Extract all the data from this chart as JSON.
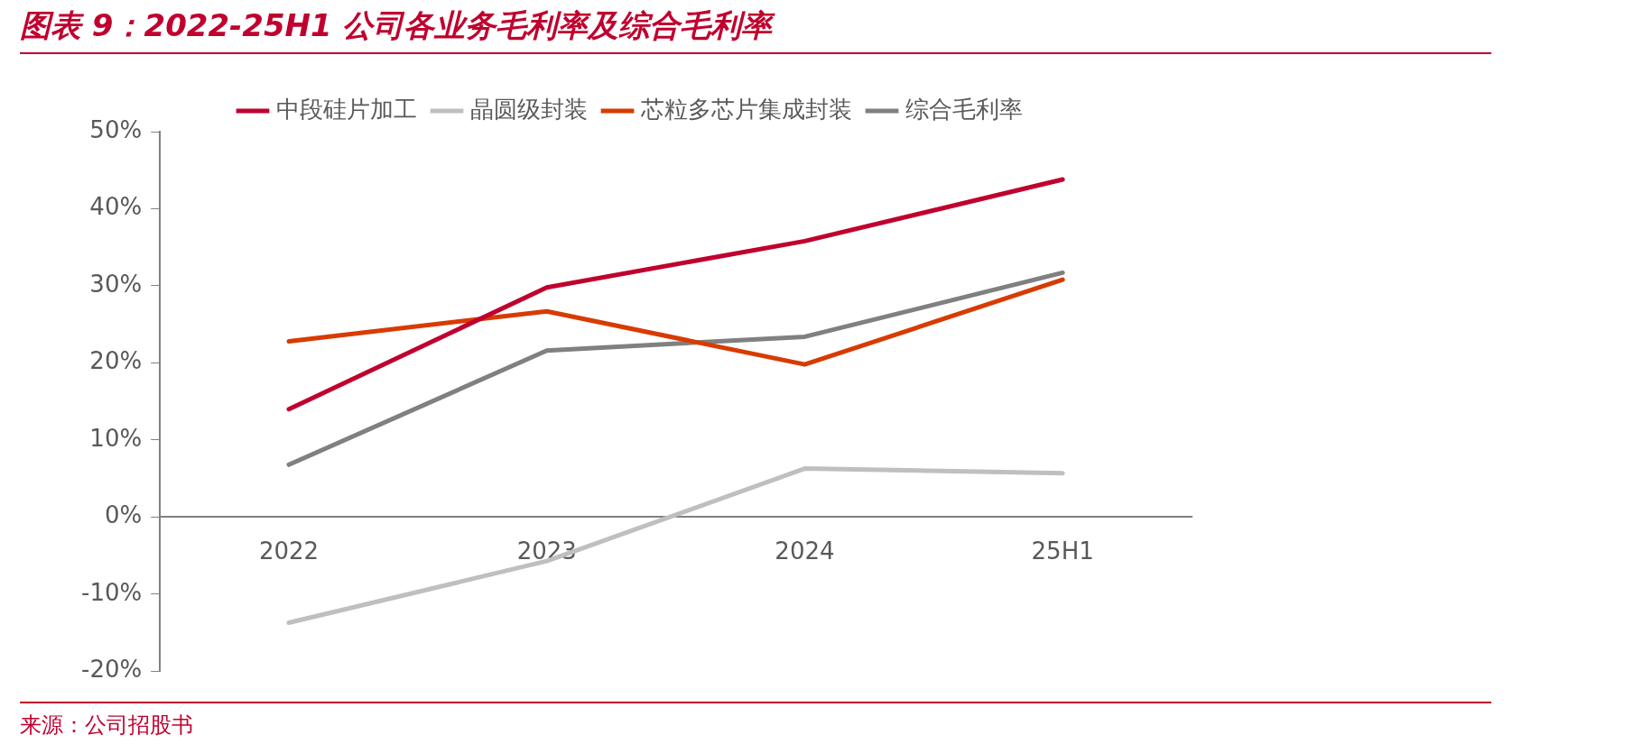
{
  "chart_data": {
    "type": "line",
    "title": "图表 9：2022-25H1 公司各业务毛利率及综合毛利率",
    "categories": [
      "2022",
      "2023",
      "2024",
      "25H1"
    ],
    "series": [
      {
        "name": "中段硅片加工",
        "color": "#c0002e",
        "values": [
          14.0,
          29.8,
          35.8,
          43.8
        ]
      },
      {
        "name": "晶圆级封装",
        "color": "#bfbfbf",
        "values": [
          -13.7,
          -5.7,
          6.3,
          5.7
        ]
      },
      {
        "name": "芯粒多芯片集成封装",
        "color": "#d83b01",
        "values": [
          22.8,
          26.7,
          19.8,
          30.8
        ]
      },
      {
        "name": "综合毛利率",
        "color": "#808080",
        "values": [
          6.8,
          21.6,
          23.4,
          31.7
        ]
      }
    ],
    "ylim": [
      -20,
      50
    ],
    "yticks": [
      {
        "value": -20,
        "label": "-20%"
      },
      {
        "value": -10,
        "label": "-10%"
      },
      {
        "value": 0,
        "label": "0%"
      },
      {
        "value": 10,
        "label": "10%"
      },
      {
        "value": 20,
        "label": "20%"
      },
      {
        "value": 30,
        "label": "30%"
      },
      {
        "value": 40,
        "label": "40%"
      },
      {
        "value": 50,
        "label": "50%"
      }
    ],
    "grid": false,
    "legend": "top",
    "marker": "none",
    "line_style": "solid",
    "annotations": [
      "来源：公司招股书"
    ]
  }
}
